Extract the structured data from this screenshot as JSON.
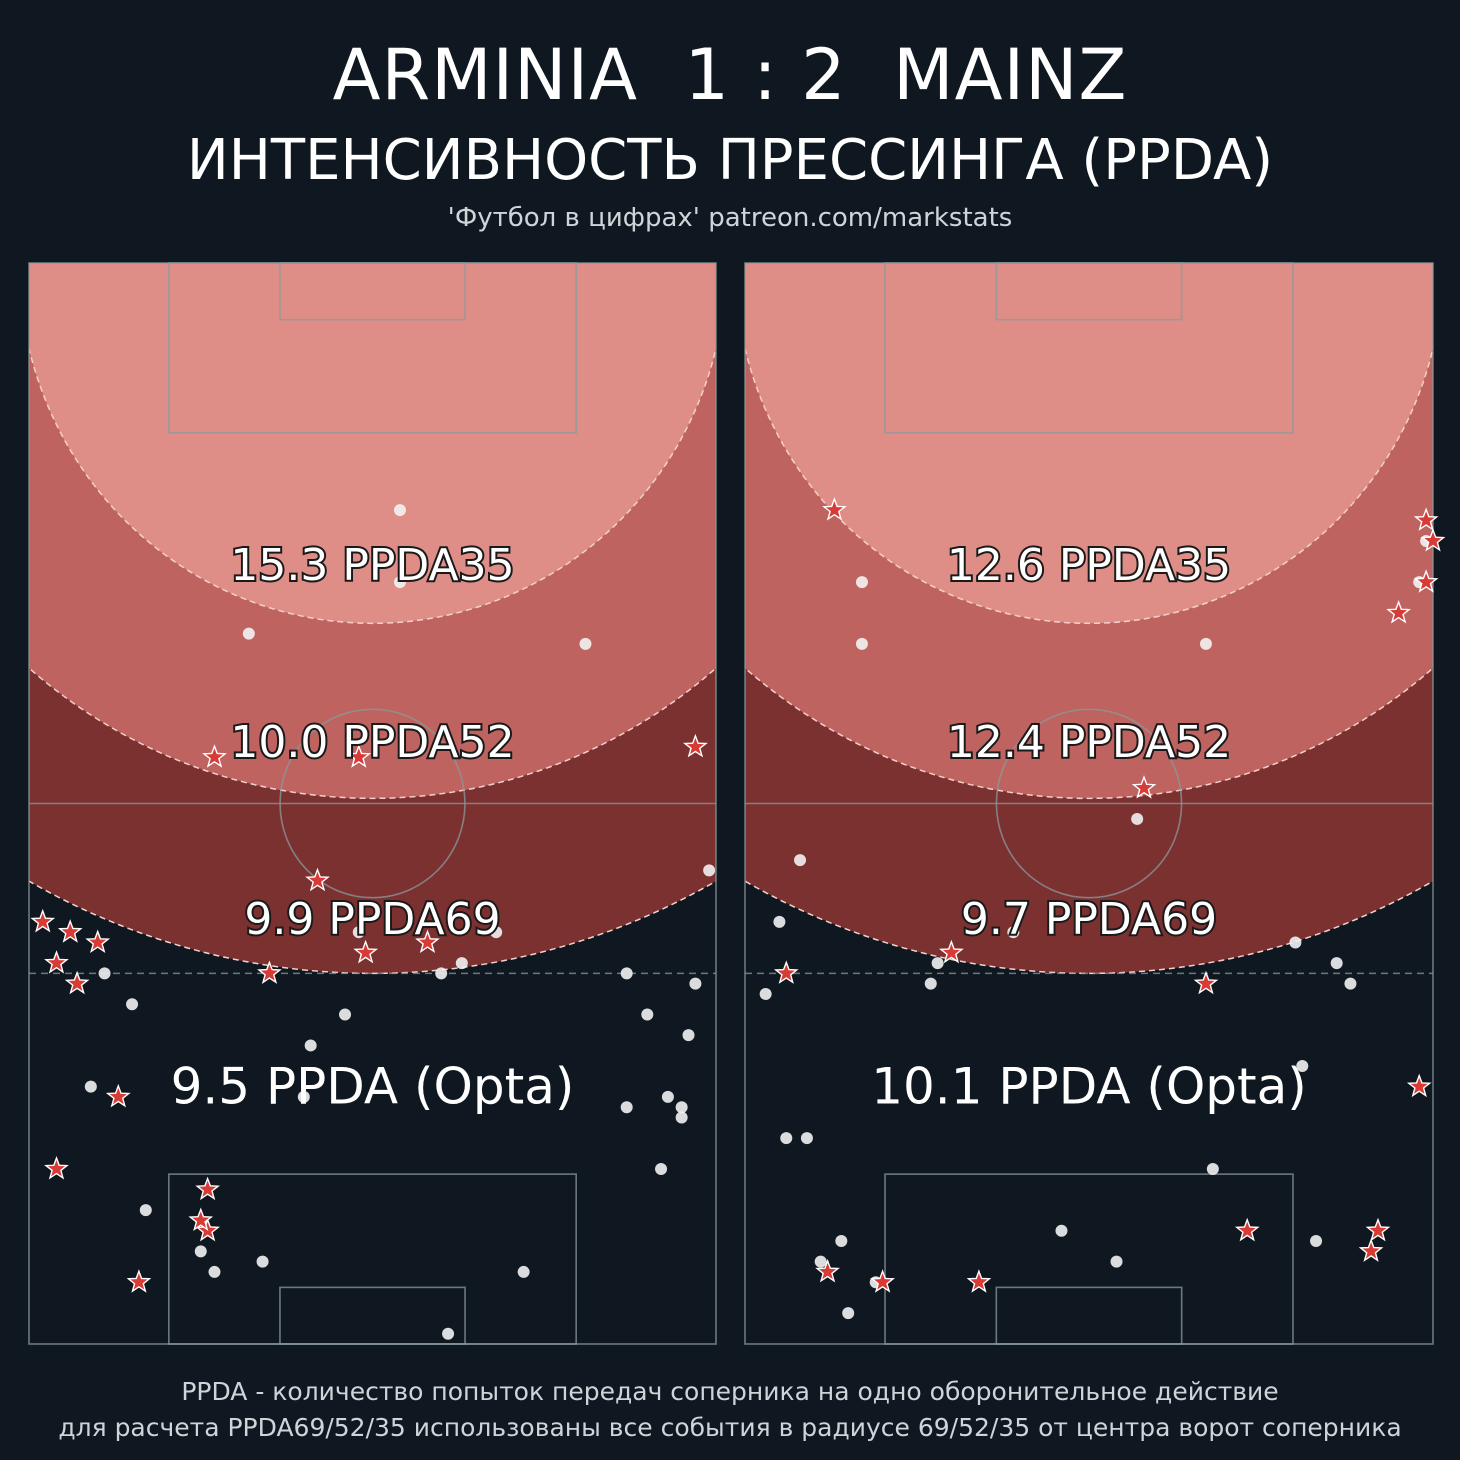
{
  "header": {
    "title": "ARMINIA  1 : 2  MAINZ",
    "subtitle": "ИНТЕНСИВНОСТЬ ПРЕССИНГА (PPDA)",
    "source": "'Футбол в цифрах' patreon.com/markstats"
  },
  "footnote": {
    "line1": "PPDA - количество попыток передач соперника на одно оборонительное действие",
    "line2": "для расчета PPDA69/52/35 использованы все события в радиусе 69/52/35 от центра ворот соперника"
  },
  "colors": {
    "background": "#0f1820",
    "zone35": "#df8e87",
    "zone52": "#be635f",
    "zone69": "#7c3131",
    "pitch_line": "#8a9a9c",
    "star": "#d83a35",
    "dot": "#f2f2f2"
  },
  "chart_data": [
    {
      "type": "scatter",
      "team": "ARMINIA",
      "zones": [
        {
          "radius": 69,
          "label": "9.9 PPDA69"
        },
        {
          "radius": 52,
          "label": "10.0 PPDA52"
        },
        {
          "radius": 35,
          "label": "15.3 PPDA35"
        }
      ],
      "opta_label": "9.5 PPDA (Opta)",
      "series": [
        {
          "marker": "dot",
          "points": [
            [
              54,
              81
            ],
            [
              54,
              74
            ],
            [
              81,
              68
            ],
            [
              99,
              46
            ],
            [
              32,
              69
            ],
            [
              60,
              36
            ],
            [
              68,
              40
            ],
            [
              87,
              36
            ],
            [
              90,
              32
            ],
            [
              96,
              30
            ],
            [
              95,
              23
            ],
            [
              93,
              24
            ],
            [
              92,
              17
            ],
            [
              48,
              40
            ],
            [
              63,
              37
            ],
            [
              46,
              32
            ],
            [
              87,
              23
            ],
            [
              40,
              24
            ],
            [
              41,
              29
            ],
            [
              97,
              35
            ],
            [
              95,
              22
            ],
            [
              11,
              36
            ],
            [
              15,
              33
            ],
            [
              9,
              25
            ],
            [
              17,
              13
            ],
            [
              25,
              9
            ],
            [
              34,
              8
            ],
            [
              72,
              7
            ],
            [
              61,
              1
            ],
            [
              27,
              7
            ]
          ]
        },
        {
          "marker": "star",
          "points": [
            [
              27,
              57
            ],
            [
              48,
              57
            ],
            [
              97,
              58
            ],
            [
              42,
              45
            ],
            [
              2,
              41
            ],
            [
              6,
              40
            ],
            [
              4,
              37
            ],
            [
              10,
              39
            ],
            [
              7,
              35
            ],
            [
              35,
              36
            ],
            [
              13,
              24
            ],
            [
              26,
              15
            ],
            [
              4,
              17
            ],
            [
              26,
              11
            ],
            [
              25,
              12
            ],
            [
              16,
              6
            ],
            [
              49,
              38
            ],
            [
              58,
              39
            ]
          ]
        }
      ]
    },
    {
      "type": "scatter",
      "team": "MAINZ",
      "zones": [
        {
          "radius": 69,
          "label": "9.7 PPDA69"
        },
        {
          "radius": 52,
          "label": "12.4 PPDA52"
        },
        {
          "radius": 35,
          "label": "12.6 PPDA35"
        }
      ],
      "opta_label": "10.1 PPDA (Opta)",
      "series": [
        {
          "marker": "dot",
          "points": [
            [
              17,
              74
            ],
            [
              17,
              68
            ],
            [
              67,
              68
            ],
            [
              8,
              47
            ],
            [
              39,
              40
            ],
            [
              28,
              37
            ],
            [
              27,
              35
            ],
            [
              5,
              41
            ],
            [
              3,
              34
            ],
            [
              86,
              37
            ],
            [
              88,
              35
            ],
            [
              80,
              39
            ],
            [
              57,
              51
            ],
            [
              81,
              27
            ],
            [
              6,
              20
            ],
            [
              9,
              20
            ],
            [
              68,
              17
            ],
            [
              46,
              11
            ],
            [
              14,
              10
            ],
            [
              19,
              6
            ],
            [
              11,
              8
            ],
            [
              15,
              3
            ],
            [
              54,
              8
            ],
            [
              83,
              10
            ],
            [
              98,
              74
            ],
            [
              99,
              78
            ]
          ]
        },
        {
          "marker": "star",
          "points": [
            [
              13,
              81
            ],
            [
              99,
              80
            ],
            [
              99,
              74
            ],
            [
              95,
              71
            ],
            [
              30,
              38
            ],
            [
              6,
              36
            ],
            [
              67,
              35
            ],
            [
              92,
              11
            ],
            [
              98,
              25
            ],
            [
              100,
              78
            ],
            [
              73,
              11
            ],
            [
              91,
              9
            ],
            [
              12,
              7
            ],
            [
              20,
              6
            ],
            [
              34,
              6
            ],
            [
              58,
              54
            ]
          ]
        }
      ]
    }
  ]
}
